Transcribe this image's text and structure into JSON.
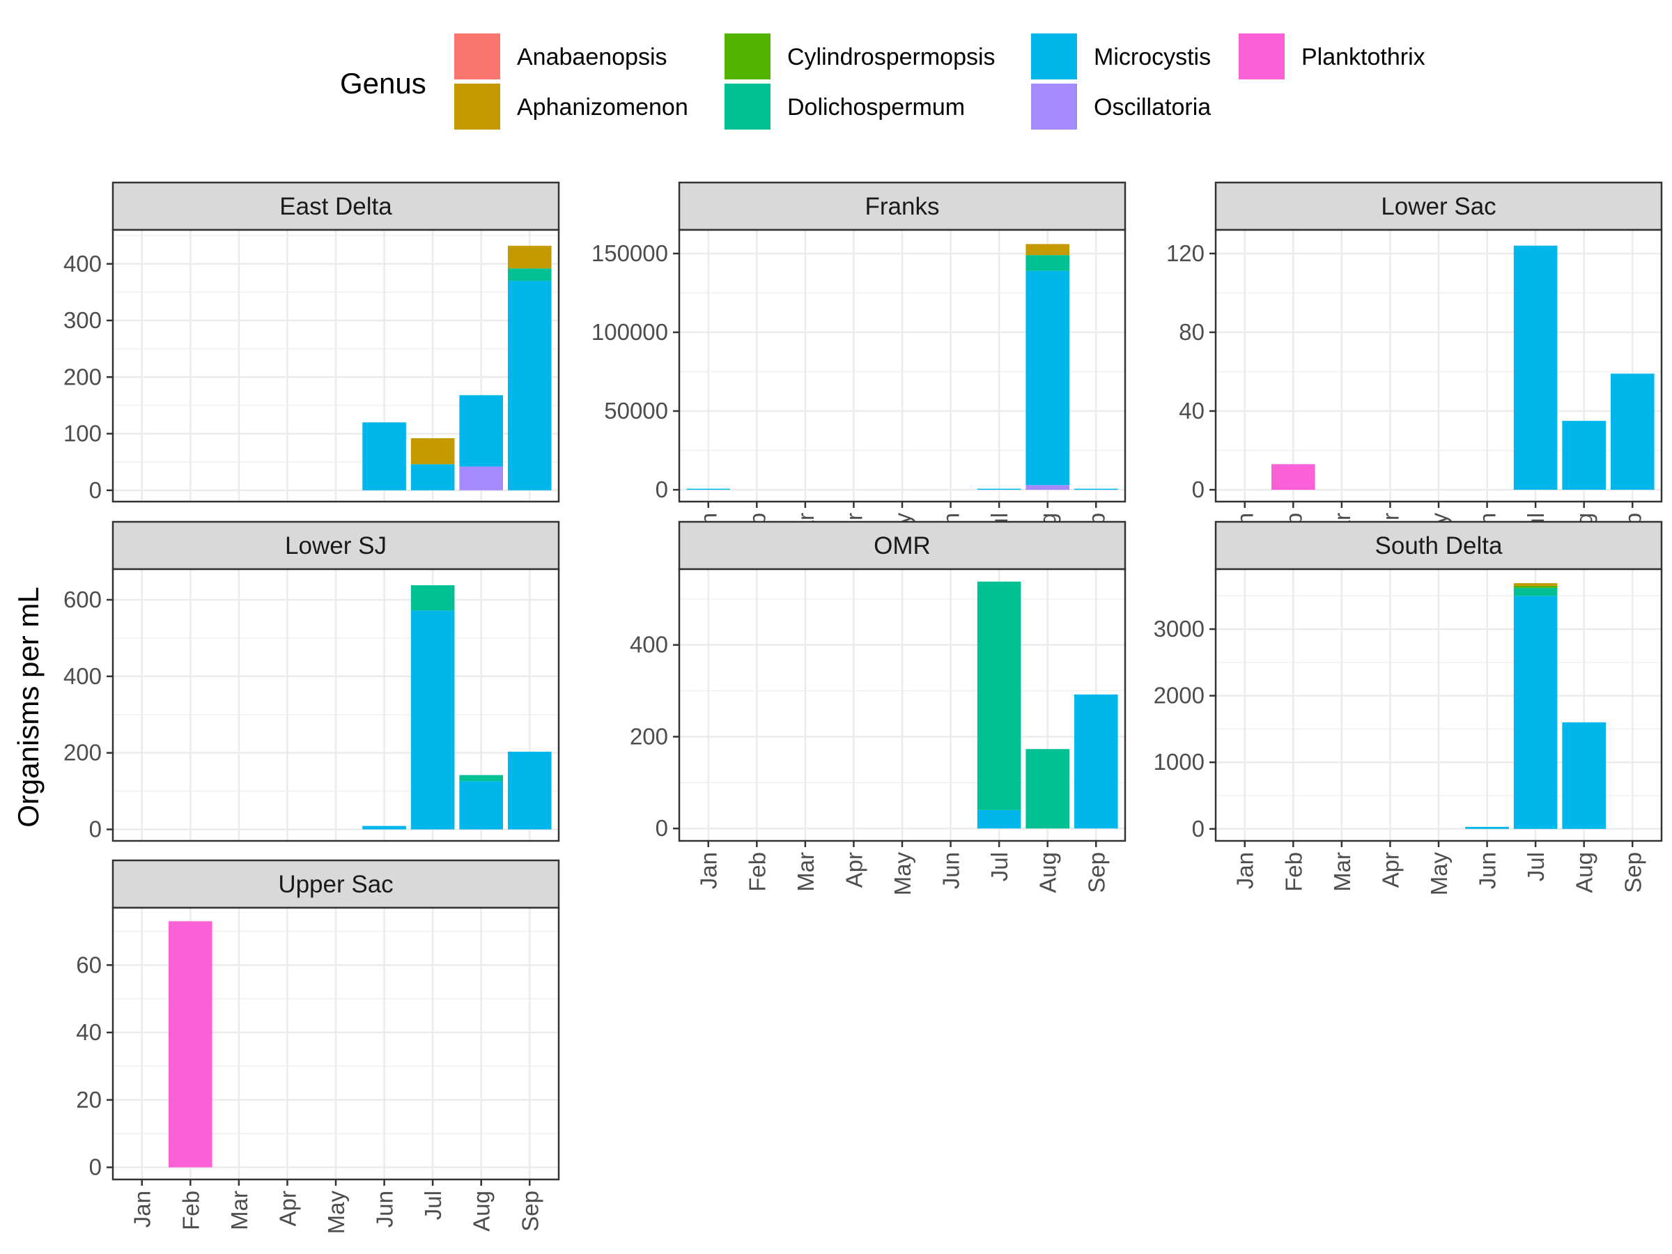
{
  "chart_data": {
    "type": "bar",
    "layout": "faceted-stacked",
    "ylabel": "Organisms per mL",
    "xlabel": "",
    "grid": true,
    "legend": {
      "title": "Genus",
      "placement": "top",
      "entries": [
        {
          "name": "Anabaenopsis",
          "color": "#F8766D"
        },
        {
          "name": "Aphanizomenon",
          "color": "#C49A00"
        },
        {
          "name": "Cylindrospermopsis",
          "color": "#53B400"
        },
        {
          "name": "Dolichospermum",
          "color": "#00C094"
        },
        {
          "name": "Microcystis",
          "color": "#00B6EB"
        },
        {
          "name": "Oscillatoria",
          "color": "#A58AFF"
        },
        {
          "name": "Planktothrix",
          "color": "#FB61D7"
        }
      ]
    },
    "categories": [
      "Jan",
      "Feb",
      "Mar",
      "Apr",
      "May",
      "Jun",
      "Jul",
      "Aug",
      "Sep"
    ],
    "panels": [
      {
        "title": "East Delta",
        "ylim": [
          -20,
          460
        ],
        "yticks": [
          0,
          100,
          200,
          300,
          400
        ],
        "show_x_labels": false,
        "bars": [
          {
            "category": "Jun",
            "segments": [
              {
                "genus": "Microcystis",
                "value": 120
              }
            ]
          },
          {
            "category": "Jul",
            "segments": [
              {
                "genus": "Microcystis",
                "value": 46
              },
              {
                "genus": "Aphanizomenon",
                "value": 46
              }
            ]
          },
          {
            "category": "Aug",
            "segments": [
              {
                "genus": "Oscillatoria",
                "value": 42
              },
              {
                "genus": "Microcystis",
                "value": 126
              }
            ]
          },
          {
            "category": "Sep",
            "segments": [
              {
                "genus": "Microcystis",
                "value": 370
              },
              {
                "genus": "Dolichospermum",
                "value": 22
              },
              {
                "genus": "Aphanizomenon",
                "value": 40
              }
            ]
          }
        ]
      },
      {
        "title": "Franks",
        "ylim": [
          -7500,
          165000
        ],
        "yticks": [
          0,
          50000,
          100000,
          150000
        ],
        "show_x_labels": true,
        "bars": [
          {
            "category": "Jan",
            "segments": [
              {
                "genus": "Microcystis",
                "value": 300
              }
            ]
          },
          {
            "category": "Jul",
            "segments": [
              {
                "genus": "Microcystis",
                "value": 400
              }
            ]
          },
          {
            "category": "Aug",
            "segments": [
              {
                "genus": "Oscillatoria",
                "value": 3000
              },
              {
                "genus": "Microcystis",
                "value": 136000
              },
              {
                "genus": "Dolichospermum",
                "value": 10000
              },
              {
                "genus": "Aphanizomenon",
                "value": 7000
              }
            ]
          },
          {
            "category": "Sep",
            "segments": [
              {
                "genus": "Microcystis",
                "value": 300
              }
            ]
          }
        ]
      },
      {
        "title": "Lower Sac",
        "ylim": [
          -6,
          132
        ],
        "yticks": [
          0,
          40,
          80,
          120
        ],
        "show_x_labels": true,
        "bars": [
          {
            "category": "Feb",
            "segments": [
              {
                "genus": "Planktothrix",
                "value": 13
              }
            ]
          },
          {
            "category": "Jul",
            "segments": [
              {
                "genus": "Microcystis",
                "value": 124
              }
            ]
          },
          {
            "category": "Aug",
            "segments": [
              {
                "genus": "Microcystis",
                "value": 35
              }
            ]
          },
          {
            "category": "Sep",
            "segments": [
              {
                "genus": "Microcystis",
                "value": 59
              }
            ]
          }
        ]
      },
      {
        "title": "Lower SJ",
        "ylim": [
          -30,
          680
        ],
        "yticks": [
          0,
          200,
          400,
          600
        ],
        "show_x_labels": false,
        "bars": [
          {
            "category": "Jun",
            "segments": [
              {
                "genus": "Microcystis",
                "value": 9
              }
            ]
          },
          {
            "category": "Jul",
            "segments": [
              {
                "genus": "Microcystis",
                "value": 572
              },
              {
                "genus": "Dolichospermum",
                "value": 66
              }
            ]
          },
          {
            "category": "Aug",
            "segments": [
              {
                "genus": "Microcystis",
                "value": 126
              },
              {
                "genus": "Dolichospermum",
                "value": 16
              }
            ]
          },
          {
            "category": "Sep",
            "segments": [
              {
                "genus": "Microcystis",
                "value": 203
              }
            ]
          }
        ]
      },
      {
        "title": "OMR",
        "ylim": [
          -27,
          565
        ],
        "yticks": [
          0,
          200,
          400
        ],
        "show_x_labels": true,
        "bars": [
          {
            "category": "Jul",
            "segments": [
              {
                "genus": "Microcystis",
                "value": 40
              },
              {
                "genus": "Dolichospermum",
                "value": 498
              }
            ]
          },
          {
            "category": "Aug",
            "segments": [
              {
                "genus": "Dolichospermum",
                "value": 173
              }
            ]
          },
          {
            "category": "Sep",
            "segments": [
              {
                "genus": "Microcystis",
                "value": 292
              }
            ]
          }
        ]
      },
      {
        "title": "South Delta",
        "ylim": [
          -180,
          3900
        ],
        "yticks": [
          0,
          1000,
          2000,
          3000
        ],
        "show_x_labels": true,
        "bars": [
          {
            "category": "Jun",
            "segments": [
              {
                "genus": "Microcystis",
                "value": 30
              }
            ]
          },
          {
            "category": "Jul",
            "segments": [
              {
                "genus": "Microcystis",
                "value": 3500
              },
              {
                "genus": "Dolichospermum",
                "value": 120
              },
              {
                "genus": "Cylindrospermopsis",
                "value": 30
              },
              {
                "genus": "Aphanizomenon",
                "value": 40
              }
            ]
          },
          {
            "category": "Aug",
            "segments": [
              {
                "genus": "Microcystis",
                "value": 1600
              }
            ]
          }
        ]
      },
      {
        "title": "Upper Sac",
        "ylim": [
          -3.6,
          77
        ],
        "yticks": [
          0,
          20,
          40,
          60
        ],
        "show_x_labels": true,
        "bars": [
          {
            "category": "Feb",
            "segments": [
              {
                "genus": "Planktothrix",
                "value": 73
              }
            ]
          }
        ]
      }
    ]
  }
}
